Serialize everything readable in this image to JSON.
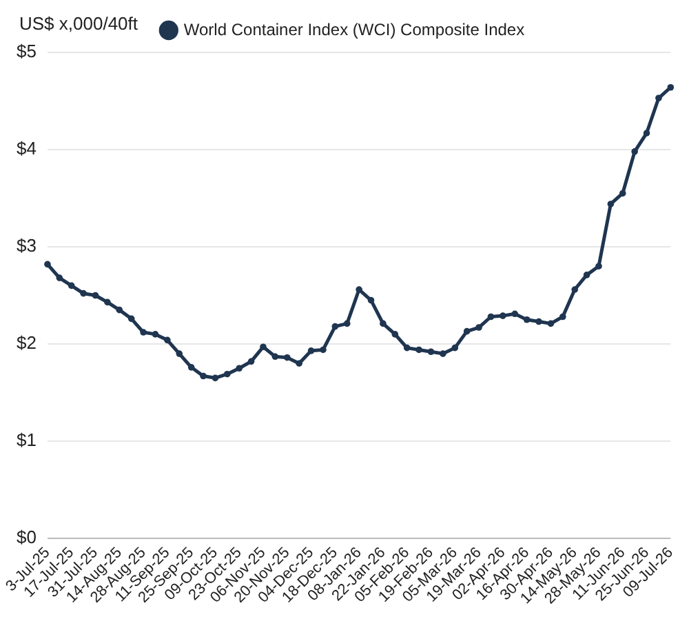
{
  "chart_data": {
    "type": "line",
    "ylabel": "US$ x,000/40ft",
    "categories": [
      "3-Jul-25",
      null,
      "17-Jul-25",
      null,
      "31-Jul-25",
      null,
      "14-Aug-25",
      null,
      "28-Aug-25",
      null,
      "11-Sep-25",
      null,
      "25-Sep-25",
      null,
      "09-Oct-25",
      null,
      "23-Oct-25",
      null,
      "06-Nov-25",
      null,
      "20-Nov-25",
      null,
      "04-Dec-25",
      null,
      "18-Dec-25",
      null,
      "08-Jan-26",
      null,
      "22-Jan-26",
      null,
      "05-Feb-26",
      null,
      "19-Feb-26",
      null,
      "05-Mar-26",
      null,
      "19-Mar-26",
      null,
      "02-Apr-26",
      null,
      "16-Apr-26",
      null,
      "30-Apr-26",
      null,
      "14-May-26",
      null,
      "28-May-26",
      null,
      "11-Jun-26",
      null,
      "25-Jun-26",
      null,
      "09-Jul-26"
    ],
    "series": [
      {
        "name": "World Container Index (WCI) Composite Index",
        "color": "#1f3550",
        "values": [
          2.82,
          2.68,
          2.6,
          2.52,
          2.5,
          2.43,
          2.35,
          2.26,
          2.12,
          2.1,
          2.04,
          1.9,
          1.76,
          1.67,
          1.65,
          1.69,
          1.75,
          1.82,
          1.97,
          1.87,
          1.86,
          1.8,
          1.93,
          1.94,
          2.18,
          2.21,
          2.56,
          2.45,
          2.21,
          2.1,
          1.96,
          1.94,
          1.92,
          1.9,
          1.96,
          2.13,
          2.17,
          2.28,
          2.29,
          2.31,
          2.25,
          2.23,
          2.21,
          2.28,
          2.56,
          2.71,
          2.8,
          3.44,
          3.55,
          3.98,
          4.17,
          4.53,
          4.64
        ]
      }
    ],
    "ylim": [
      0,
      5
    ],
    "yticks": [
      {
        "value": 0,
        "label": "$0"
      },
      {
        "value": 1,
        "label": "$1"
      },
      {
        "value": 2,
        "label": "$2"
      },
      {
        "value": 3,
        "label": "$3"
      },
      {
        "value": 4,
        "label": "$4"
      },
      {
        "value": 5,
        "label": "$5"
      }
    ],
    "grid": "y",
    "legend": "top",
    "marker": "circle",
    "line_style": "solid"
  }
}
